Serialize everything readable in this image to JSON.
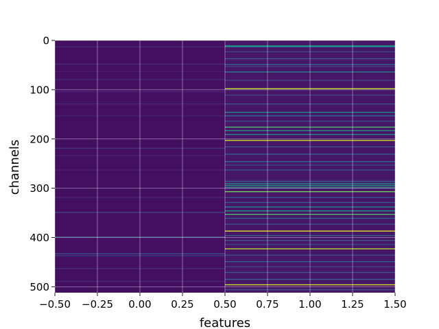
{
  "chart_data": {
    "type": "heatmap",
    "title": "",
    "xlabel": "features",
    "ylabel": "channels",
    "xlim": [
      -0.5,
      1.5
    ],
    "ylim": [
      512,
      0
    ],
    "x_ticks": [
      -0.5,
      -0.25,
      0.0,
      0.25,
      0.5,
      0.75,
      1.0,
      1.25,
      1.5
    ],
    "x_tick_labels": [
      "−0.50",
      "−0.25",
      "0.00",
      "0.25",
      "0.50",
      "0.75",
      "1.00",
      "1.25",
      "1.50"
    ],
    "y_ticks": [
      0,
      100,
      200,
      300,
      400,
      500
    ],
    "y_tick_labels": [
      "0",
      "100",
      "200",
      "300",
      "400",
      "500"
    ],
    "grid": true,
    "colormap": "viridis",
    "columns": [
      {
        "feature": 0,
        "baseline": 0.04,
        "rows": [
          {
            "channel": 12,
            "value": 0.1
          },
          {
            "channel": 47,
            "value": 0.12
          },
          {
            "channel": 62,
            "value": 0.08
          },
          {
            "channel": 78,
            "value": 0.12
          },
          {
            "channel": 103,
            "value": 0.1
          },
          {
            "channel": 128,
            "value": 0.1
          },
          {
            "channel": 152,
            "value": 0.08
          },
          {
            "channel": 218,
            "value": 0.16
          },
          {
            "channel": 233,
            "value": 0.1
          },
          {
            "channel": 262,
            "value": 0.08
          },
          {
            "channel": 318,
            "value": 0.1
          },
          {
            "channel": 348,
            "value": 0.2
          },
          {
            "channel": 398,
            "value": 0.28
          },
          {
            "channel": 432,
            "value": 0.24
          },
          {
            "channel": 436,
            "value": 0.18
          },
          {
            "channel": 462,
            "value": 0.12
          },
          {
            "channel": 488,
            "value": 0.1
          }
        ]
      },
      {
        "feature": 1,
        "baseline": 0.06,
        "rows": [
          {
            "channel": 10,
            "value": 0.55
          },
          {
            "channel": 12,
            "value": 0.4
          },
          {
            "channel": 22,
            "value": 0.22
          },
          {
            "channel": 36,
            "value": 0.28
          },
          {
            "channel": 48,
            "value": 0.32
          },
          {
            "channel": 52,
            "value": 0.2
          },
          {
            "channel": 63,
            "value": 0.42
          },
          {
            "channel": 80,
            "value": 0.2
          },
          {
            "channel": 97,
            "value": 0.9
          },
          {
            "channel": 110,
            "value": 0.2
          },
          {
            "channel": 128,
            "value": 0.25
          },
          {
            "channel": 145,
            "value": 0.48
          },
          {
            "channel": 152,
            "value": 0.35
          },
          {
            "channel": 163,
            "value": 0.25
          },
          {
            "channel": 175,
            "value": 0.7
          },
          {
            "channel": 182,
            "value": 0.5
          },
          {
            "channel": 190,
            "value": 0.45
          },
          {
            "channel": 202,
            "value": 0.92
          },
          {
            "channel": 215,
            "value": 0.25
          },
          {
            "channel": 230,
            "value": 0.3
          },
          {
            "channel": 245,
            "value": 0.35
          },
          {
            "channel": 252,
            "value": 0.22
          },
          {
            "channel": 262,
            "value": 0.28
          },
          {
            "channel": 285,
            "value": 0.3
          },
          {
            "channel": 290,
            "value": 0.5
          },
          {
            "channel": 294,
            "value": 0.55
          },
          {
            "channel": 298,
            "value": 0.45
          },
          {
            "channel": 306,
            "value": 0.78
          },
          {
            "channel": 318,
            "value": 0.25
          },
          {
            "channel": 328,
            "value": 0.28
          },
          {
            "channel": 337,
            "value": 0.45
          },
          {
            "channel": 345,
            "value": 0.55
          },
          {
            "channel": 352,
            "value": 0.7
          },
          {
            "channel": 360,
            "value": 0.3
          },
          {
            "channel": 372,
            "value": 0.25
          },
          {
            "channel": 386,
            "value": 0.95
          },
          {
            "channel": 395,
            "value": 0.3
          },
          {
            "channel": 405,
            "value": 0.28
          },
          {
            "channel": 413,
            "value": 0.22
          },
          {
            "channel": 422,
            "value": 0.88
          },
          {
            "channel": 435,
            "value": 0.25
          },
          {
            "channel": 448,
            "value": 0.3
          },
          {
            "channel": 458,
            "value": 0.2
          },
          {
            "channel": 470,
            "value": 0.28
          },
          {
            "channel": 484,
            "value": 0.3
          },
          {
            "channel": 495,
            "value": 0.92
          },
          {
            "channel": 505,
            "value": 0.25
          }
        ]
      }
    ]
  }
}
